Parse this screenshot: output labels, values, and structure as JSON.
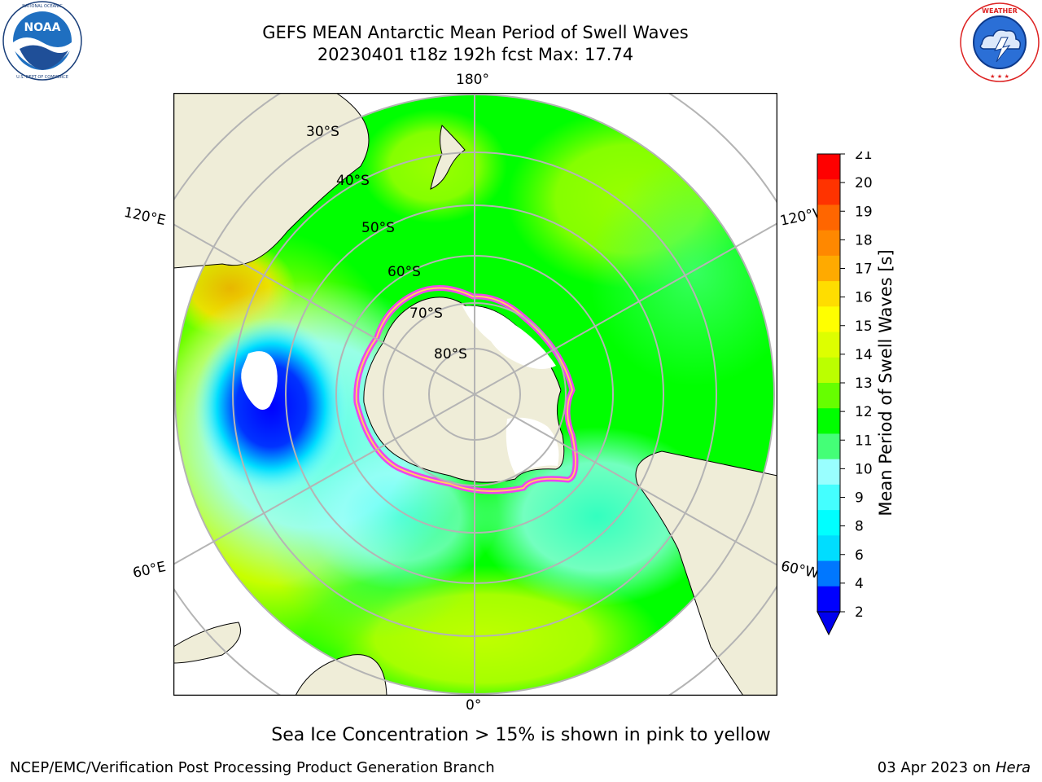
{
  "header": {
    "title_line1": "GEFS MEAN Antarctic Mean Period of Swell Waves",
    "title_line2": "20230401 t18z 192h fcst   Max: 17.74"
  },
  "logos": {
    "left_name": "noaa-logo",
    "left_text": "NOAA",
    "left_ring_text": "NATIONAL OCEANIC AND ATMOSPHERIC ADMINISTRATION · U.S. DEPARTMENT OF COMMERCE",
    "right_name": "nws-logo",
    "right_ring_text": "NATIONAL WEATHER SERVICE"
  },
  "map": {
    "projection": "south-polar-stereographic",
    "longitude_labels": {
      "top": "180°",
      "bottom": "0°",
      "upper_left": "120°E",
      "upper_right": "120°W",
      "lower_left": "60°E",
      "lower_right": "60°W"
    },
    "latitude_labels": [
      "30°S",
      "40°S",
      "50°S",
      "60°S",
      "70°S",
      "80°S"
    ],
    "colors": {
      "land": "#efedd8",
      "sea_ice_white": "#ffffff",
      "ice_edge_pink": "#ee44ee",
      "ice_edge_yellow": "#ffd060",
      "grid": "#b4b4b4"
    }
  },
  "colorbar": {
    "label": "Mean Period of Swell Waves [s]",
    "ticks": [
      "21",
      "20",
      "19",
      "18",
      "17",
      "16",
      "15",
      "14",
      "13",
      "12",
      "11",
      "10",
      "9",
      "8",
      "6",
      "4",
      "2"
    ],
    "colors_top_to_bottom": [
      "#ff0000",
      "#ff3300",
      "#ff6600",
      "#ff8800",
      "#ffaa00",
      "#ffdd00",
      "#ffff00",
      "#ddff00",
      "#bbff00",
      "#66ff00",
      "#00ff00",
      "#44ff77",
      "#99ffff",
      "#44ffff",
      "#00ffff",
      "#00ddff",
      "#0077ff",
      "#0000ff"
    ],
    "under_color": "#0000ee"
  },
  "note": "Sea Ice Concentration > 15% is shown in pink to yellow",
  "footer": {
    "left": "NCEP/EMC/Verification Post Processing Product Generation Branch",
    "date": "03 Apr 2023 on ",
    "host": "Hera"
  }
}
